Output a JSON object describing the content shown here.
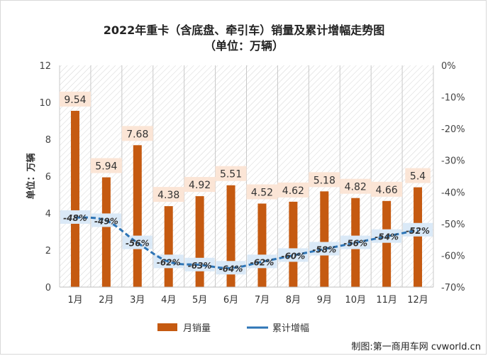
{
  "chart_data": {
    "type": "bar",
    "title": "2022年重卡（含底盘、牵引车）销量及累计增幅走势图",
    "subtitle": "（单位：万辆）",
    "ylabel": "单位：万辆",
    "categories": [
      "1月",
      "2月",
      "3月",
      "4月",
      "5月",
      "6月",
      "7月",
      "8月",
      "9月",
      "10月",
      "11月",
      "12月"
    ],
    "series": [
      {
        "name": "月销量",
        "type": "bar",
        "axis": "left",
        "color": "#c55a11",
        "values": [
          9.54,
          5.94,
          7.68,
          4.38,
          4.92,
          5.51,
          4.52,
          4.62,
          5.18,
          4.82,
          4.66,
          5.4
        ],
        "labels": [
          "9.54",
          "5.94",
          "7.68",
          "4.38",
          "4.92",
          "5.51",
          "4.52",
          "4.62",
          "5.18",
          "4.82",
          "4.66",
          "5.4"
        ]
      },
      {
        "name": "累计增幅",
        "type": "line",
        "axis": "right",
        "color": "#2e75b6",
        "values": [
          -48,
          -49,
          -56,
          -62,
          -63,
          -64,
          -62,
          -60,
          -58,
          -56,
          -54,
          -52
        ],
        "labels": [
          "-48%",
          "-49%",
          "-56%",
          "-62%",
          "-63%",
          "-64%",
          "-62%",
          "-60%",
          "-58%",
          "-56%",
          "-54%",
          "-52%"
        ]
      }
    ],
    "ylim": [
      0,
      12
    ],
    "yticks": [
      "0",
      "2",
      "4",
      "6",
      "8",
      "10",
      "12"
    ],
    "y2lim": [
      -70,
      0
    ],
    "y2ticks": [
      "0%",
      "-10%",
      "-20%",
      "-30%",
      "-40%",
      "-50%",
      "-60%",
      "-70%"
    ],
    "legend_position": "bottom"
  },
  "credit": "制图:第一商用车网 cvworld.cn"
}
